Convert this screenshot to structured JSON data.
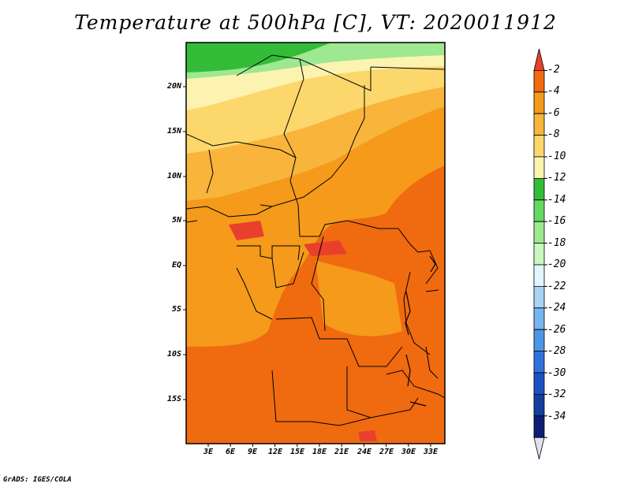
{
  "title": "Temperature at 500hPa [C], VT: 2020011912",
  "credit": "GrADS: IGES/COLA",
  "map": {
    "variable": "Temperature at 500hPa",
    "units": "C",
    "valid_time": "2020011912",
    "lon_range": [
      0,
      35
    ],
    "lat_range": [
      -20,
      25
    ],
    "lat_ticks": [
      "20N",
      "15N",
      "10N",
      "5N",
      "EQ",
      "5S",
      "10S",
      "15S"
    ],
    "lon_ticks": [
      "3E",
      "6E",
      "9E",
      "12E",
      "15E",
      "18E",
      "21E",
      "24E",
      "27E",
      "30E",
      "33E"
    ]
  },
  "colorbar": {
    "labels": [
      "-2",
      "-4",
      "-6",
      "-8",
      "-10",
      "-12",
      "-14",
      "-16",
      "-18",
      "-20",
      "-22",
      "-24",
      "-26",
      "-28",
      "-30",
      "-32",
      "-34"
    ],
    "colors": [
      "#e8402c",
      "#f06a10",
      "#f59a1a",
      "#f8b43b",
      "#fcd76b",
      "#fdf3b0",
      "#34bc39",
      "#65d862",
      "#9ee891",
      "#c8f7bf",
      "#e2f6fc",
      "#a8d3f4",
      "#78b5ef",
      "#4f95e6",
      "#2f72dc",
      "#1b51c3",
      "#133e9e",
      "#0d1f72",
      "#e0e0f5"
    ]
  }
}
